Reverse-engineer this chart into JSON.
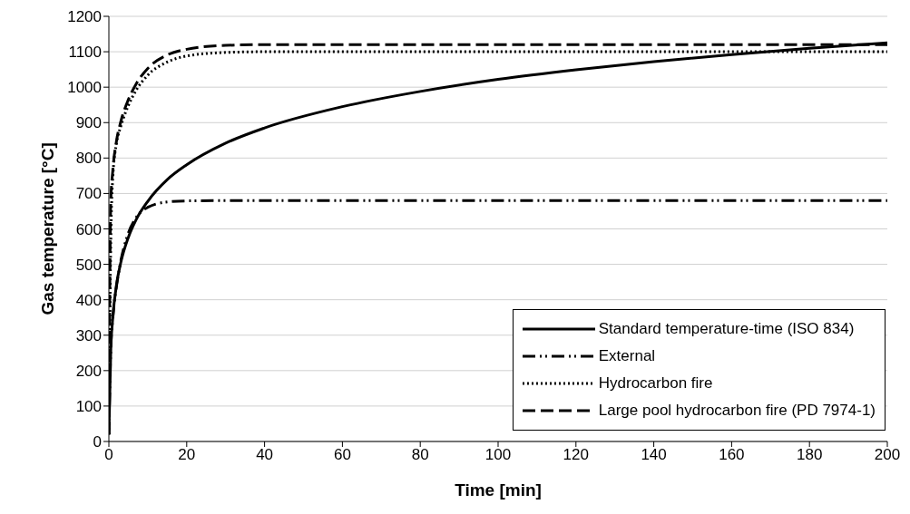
{
  "chart_data": {
    "type": "line",
    "xlabel": "Time [min]",
    "ylabel": "Gas temperature [°C]",
    "x": [
      0,
      0.5,
      1,
      2,
      3,
      5,
      7,
      10,
      15,
      20,
      30,
      40,
      60,
      80,
      100,
      120,
      140,
      160,
      180,
      200
    ],
    "series": [
      {
        "name": "Standard temperature-time (ISO 834)",
        "color": "#000000",
        "line_style": "solid",
        "values": [
          20,
          261,
          349,
          445,
          502,
          576,
          626,
          678,
          739,
          781,
          842,
          885,
          945,
          988,
          1022,
          1049,
          1072,
          1092,
          1110,
          1125
        ]
      },
      {
        "name": "External",
        "color": "#000000",
        "line_style": "dashdot",
        "values": [
          20,
          263,
          346,
          441,
          506,
          588,
          632,
          661,
          676,
          679,
          680,
          680,
          680,
          680,
          680,
          680,
          680,
          680,
          680,
          680
        ]
      },
      {
        "name": "Hydrocarbon fire",
        "color": "#000000",
        "line_style": "dotted",
        "values": [
          20,
          569,
          744,
          844,
          887,
          948,
          991,
          1034,
          1071,
          1088,
          1098,
          1100,
          1100,
          1100,
          1100,
          1100,
          1100,
          1100,
          1100,
          1100
        ]
      },
      {
        "name": "Large pool hydrocarbon fire (PD 7974-1)",
        "color": "#000000",
        "line_style": "dashed",
        "values": [
          20,
          681,
          764,
          851,
          900,
          965,
          1009,
          1053,
          1091,
          1107,
          1118,
          1120,
          1120,
          1120,
          1120,
          1120,
          1120,
          1120,
          1120,
          1120
        ]
      }
    ],
    "xlim": [
      0,
      200
    ],
    "xticks": [
      0,
      20,
      40,
      60,
      80,
      100,
      120,
      140,
      160,
      180,
      200
    ],
    "ylim": [
      0,
      1200
    ],
    "yticks": [
      0,
      100,
      200,
      300,
      400,
      500,
      600,
      700,
      800,
      900,
      1000,
      1100,
      1200
    ],
    "grid": "y",
    "legend": "bottom right",
    "marker": "none"
  }
}
